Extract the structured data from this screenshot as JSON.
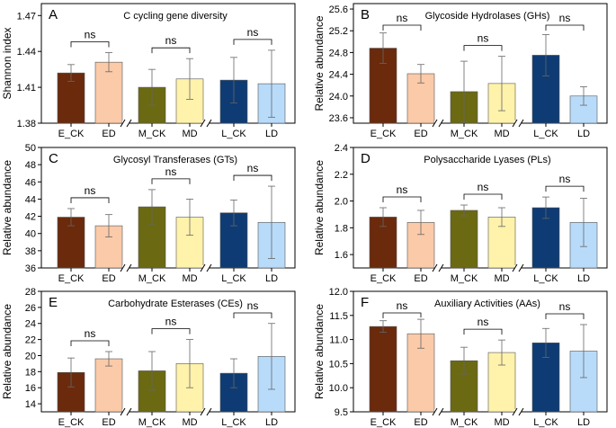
{
  "chart_data": [
    {
      "type": "bar",
      "panel": "A",
      "title": "C cycling gene diversity",
      "ylabel": "Shannon index",
      "ylim": [
        1.38,
        1.48
      ],
      "yticks": [
        1.38,
        1.41,
        1.44,
        1.47
      ],
      "ytick_labels": [
        "1.38",
        "1.41",
        "1.44",
        "1.47"
      ],
      "categories": [
        "E_CK",
        "ED",
        "M_CK",
        "MD",
        "L_CK",
        "LD"
      ],
      "values": [
        1.422,
        1.431,
        1.41,
        1.417,
        1.416,
        1.413
      ],
      "errors": [
        0.007,
        0.008,
        0.015,
        0.017,
        0.019,
        0.028
      ],
      "significance": [
        "ns",
        "ns",
        "ns"
      ]
    },
    {
      "type": "bar",
      "panel": "B",
      "title": "Glycoside Hydrolases (GHs)",
      "ylabel": "Relative abundance",
      "ylim": [
        23.5,
        25.7
      ],
      "yticks": [
        23.6,
        24.0,
        24.4,
        24.8,
        25.2,
        25.6
      ],
      "ytick_labels": [
        "23.6",
        "24.0",
        "24.4",
        "24.8",
        "25.2",
        "25.6"
      ],
      "categories": [
        "E_CK",
        "ED",
        "M_CK",
        "MD",
        "L_CK",
        "LD"
      ],
      "values": [
        24.88,
        24.41,
        24.08,
        24.23,
        24.75,
        24.0
      ],
      "errors": [
        0.28,
        0.17,
        0.56,
        0.5,
        0.38,
        0.17
      ],
      "significance": [
        "ns",
        "ns",
        "ns"
      ]
    },
    {
      "type": "bar",
      "panel": "C",
      "title": "Glycosyl Transferases (GTs)",
      "ylabel": "Relative abundance",
      "ylim": [
        36,
        50
      ],
      "yticks": [
        36,
        38,
        40,
        42,
        44,
        46,
        48,
        50
      ],
      "ytick_labels": [
        "36",
        "38",
        "40",
        "42",
        "44",
        "46",
        "48",
        "50"
      ],
      "categories": [
        "E_CK",
        "ED",
        "M_CK",
        "MD",
        "L_CK",
        "LD"
      ],
      "values": [
        41.9,
        40.9,
        43.1,
        41.9,
        42.4,
        41.3
      ],
      "errors": [
        1.0,
        1.3,
        2.0,
        2.1,
        1.5,
        4.2
      ],
      "significance": [
        "ns",
        "ns",
        "ns"
      ]
    },
    {
      "type": "bar",
      "panel": "D",
      "title": "Polysaccharide Lyases (PLs)",
      "ylabel": "Relative abundance",
      "ylim": [
        1.5,
        2.4
      ],
      "yticks": [
        1.6,
        1.8,
        2.0,
        2.2,
        2.4
      ],
      "ytick_labels": [
        "1.6",
        "1.8",
        "2.0",
        "2.2",
        "2.4"
      ],
      "categories": [
        "E_CK",
        "ED",
        "M_CK",
        "MD",
        "L_CK",
        "LD"
      ],
      "values": [
        1.88,
        1.84,
        1.93,
        1.88,
        1.95,
        1.84
      ],
      "errors": [
        0.07,
        0.09,
        0.04,
        0.07,
        0.08,
        0.18
      ],
      "significance": [
        "ns",
        "ns",
        "ns"
      ]
    },
    {
      "type": "bar",
      "panel": "E",
      "title": "Carbohydrate Esterases (CEs)",
      "ylabel": "Relative abundance",
      "ylim": [
        13,
        28
      ],
      "yticks": [
        14,
        16,
        18,
        20,
        22,
        24,
        26,
        28
      ],
      "ytick_labels": [
        "14",
        "16",
        "18",
        "20",
        "22",
        "24",
        "26",
        "28"
      ],
      "categories": [
        "E_CK",
        "ED",
        "M_CK",
        "MD",
        "L_CK",
        "LD"
      ],
      "values": [
        17.9,
        19.6,
        18.1,
        19.0,
        17.8,
        19.9
      ],
      "errors": [
        1.8,
        0.9,
        2.4,
        3.0,
        1.8,
        4.1
      ],
      "significance": [
        "ns",
        "ns",
        "ns"
      ]
    },
    {
      "type": "bar",
      "panel": "F",
      "title": "Auxiliary Activities (AAs)",
      "ylabel": "Relative abundance",
      "ylim": [
        9.5,
        12.0
      ],
      "yticks": [
        9.5,
        10.0,
        10.5,
        11.0,
        11.5,
        12.0
      ],
      "ytick_labels": [
        "9.5",
        "10.0",
        "10.5",
        "11.0",
        "11.5",
        "12.0"
      ],
      "categories": [
        "E_CK",
        "ED",
        "M_CK",
        "MD",
        "L_CK",
        "LD"
      ],
      "values": [
        11.27,
        11.12,
        10.56,
        10.73,
        10.93,
        10.76
      ],
      "errors": [
        0.12,
        0.3,
        0.28,
        0.26,
        0.3,
        0.55
      ],
      "significance": [
        "ns",
        "ns",
        "ns"
      ]
    }
  ],
  "colors": {
    "E_CK": "#6b2a0c",
    "ED": "#fbcaa8",
    "M_CK": "#6b6a13",
    "MD": "#fff2ab",
    "L_CK": "#0e3b74",
    "LD": "#b9dbfa"
  }
}
